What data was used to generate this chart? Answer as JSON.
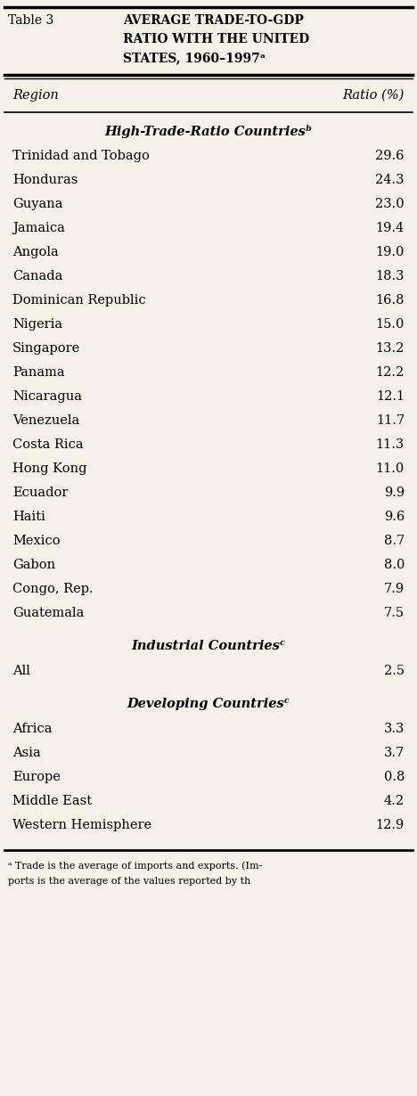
{
  "table_label": "Table 3",
  "title_line1": "AVERAGE TRADE-TO-GDP",
  "title_line2": "RATIO WITH THE UNITED",
  "title_line3": "STATES, 1960–1997ᵃ",
  "col_header_left": "Region",
  "col_header_right": "Ratio (%)",
  "section1_header": "High-Trade-Ratio Countriesᵇ",
  "section1_rows": [
    [
      "Trinidad and Tobago",
      "29.6"
    ],
    [
      "Honduras",
      "24.3"
    ],
    [
      "Guyana",
      "23.0"
    ],
    [
      "Jamaica",
      "19.4"
    ],
    [
      "Angola",
      "19.0"
    ],
    [
      "Canada",
      "18.3"
    ],
    [
      "Dominican Republic",
      "16.8"
    ],
    [
      "Nigeria",
      "15.0"
    ],
    [
      "Singapore",
      "13.2"
    ],
    [
      "Panama",
      "12.2"
    ],
    [
      "Nicaragua",
      "12.1"
    ],
    [
      "Venezuela",
      "11.7"
    ],
    [
      "Costa Rica",
      "11.3"
    ],
    [
      "Hong Kong",
      "11.0"
    ],
    [
      "Ecuador",
      "9.9"
    ],
    [
      "Haiti",
      "9.6"
    ],
    [
      "Mexico",
      "8.7"
    ],
    [
      "Gabon",
      "8.0"
    ],
    [
      "Congo, Rep.",
      "7.9"
    ],
    [
      "Guatemala",
      "7.5"
    ]
  ],
  "section2_header": "Industrial Countriesᶜ",
  "section2_rows": [
    [
      "All",
      "2.5"
    ]
  ],
  "section3_header": "Developing Countriesᶜ",
  "section3_rows": [
    [
      "Africa",
      "3.3"
    ],
    [
      "Asia",
      "3.7"
    ],
    [
      "Europe",
      "0.8"
    ],
    [
      "Middle East",
      "4.2"
    ],
    [
      "Western Hemisphere",
      "12.9"
    ]
  ],
  "footnote_line1": "ᵃ Trade is the average of imports and exports. (Im-",
  "footnote_line2": "ports is the average of the values reported by th",
  "bg_color": "#f5f0e8",
  "text_color": "#000000"
}
